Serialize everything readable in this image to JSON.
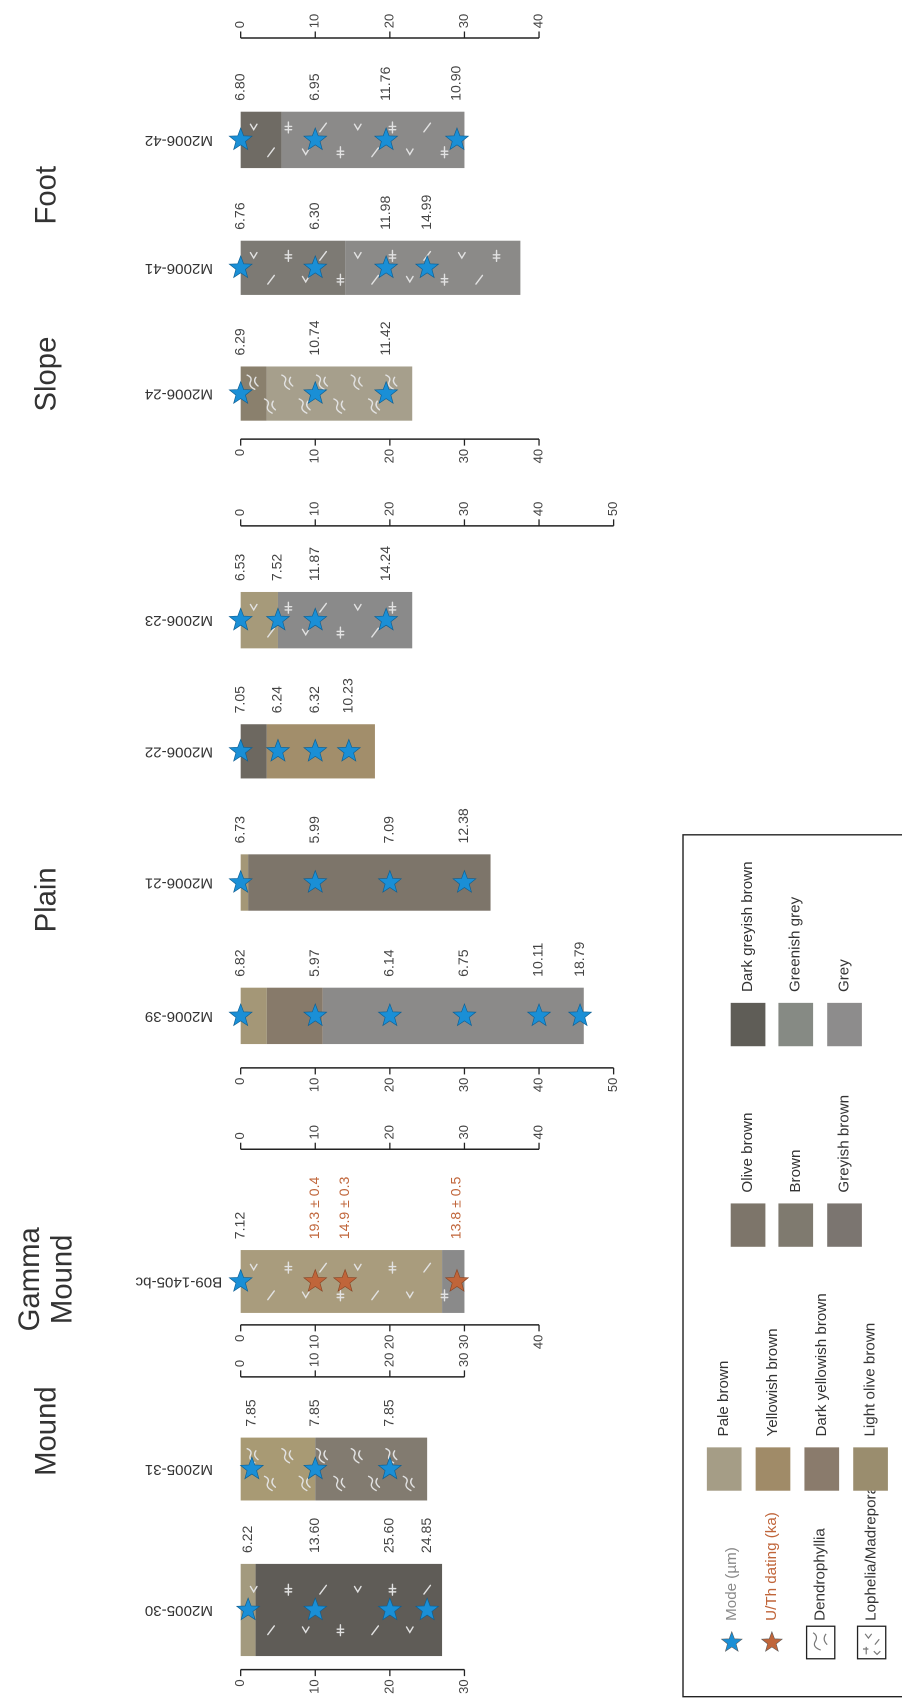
{
  "groups": [
    {
      "title_lines": [
        "Mound"
      ],
      "cores": [
        {
          "name": "M2005-30",
          "coral": "lophelia",
          "layers": [
            {
              "to": 2,
              "color": "#a39a7e"
            },
            {
              "to": 27,
              "color": "#5f5c57"
            }
          ],
          "modes": {
            "depths": [
              1,
              10,
              20,
              25
            ],
            "values": [
              6.22,
              13.6,
              25.6,
              24.85
            ],
            "value_labels": [
              "6.22",
              "13.60",
              "25.60",
              "24.85"
            ]
          }
        },
        {
          "name": "M2005-31",
          "coral": "dendrophyllia",
          "layers": [
            {
              "to": 10,
              "color": "#a89a74"
            },
            {
              "to": 25,
              "color": "#827b70"
            }
          ],
          "modes": {
            "depths": [
              1.5,
              10,
              20
            ],
            "values": [
              7.85,
              7.85,
              7.85
            ],
            "value_labels": [
              "7.85",
              "7.85",
              "7.85"
            ]
          }
        }
      ]
    },
    {
      "title_lines": [
        "Gamma",
        "Mound"
      ],
      "cores": [
        {
          "name": "B09-1405-bc",
          "coral": "lophelia",
          "layers": [
            {
              "to": 27,
              "color": "#a99c7d"
            },
            {
              "to": 30,
              "color": "#8a8a8a"
            }
          ],
          "modes": {
            "depths": [
              0
            ],
            "values": [
              7.12
            ],
            "value_labels": [
              "7.12"
            ]
          },
          "dating": {
            "depths": [
              10,
              14,
              29
            ],
            "values": [
              19.3,
              14.9,
              13.8
            ],
            "errors": [
              0.4,
              0.3,
              0.5
            ],
            "value_labels": [
              "19.3 ± 0.4",
              "14.9 ± 0.3",
              "13.8 ± 0.5"
            ]
          }
        }
      ]
    },
    {
      "title_lines": [
        "Plain"
      ],
      "cores": [
        {
          "name": "M2006-39",
          "coral": null,
          "layers": [
            {
              "to": 3.5,
              "color": "#a49777"
            },
            {
              "to": 11,
              "color": "#877a6a"
            },
            {
              "to": 46,
              "color": "#8b8a89"
            }
          ],
          "modes": {
            "depths": [
              0,
              10,
              20,
              30,
              40,
              45.5
            ],
            "values": [
              6.82,
              5.97,
              6.14,
              6.75,
              10.11,
              18.79
            ],
            "value_labels": [
              "6.82",
              "5.97",
              "6.14",
              "6.75",
              "10.11",
              "18.79"
            ]
          }
        },
        {
          "name": "M2006-21",
          "coral": null,
          "layers": [
            {
              "to": 1,
              "color": "#a49777"
            },
            {
              "to": 33.5,
              "color": "#7d756a"
            }
          ],
          "modes": {
            "depths": [
              0,
              10,
              20,
              30
            ],
            "values": [
              6.73,
              5.99,
              7.09,
              12.38
            ],
            "value_labels": [
              "6.73",
              "5.99",
              "7.09",
              "12.38"
            ]
          }
        },
        {
          "name": "M2006-22",
          "coral": null,
          "layers": [
            {
              "to": 3.5,
              "color": "#6d6860"
            },
            {
              "to": 18,
              "color": "#a28e6b"
            }
          ],
          "modes": {
            "depths": [
              0,
              5,
              10,
              14.5
            ],
            "values": [
              7.05,
              6.24,
              6.32,
              10.23
            ],
            "value_labels": [
              "7.05",
              "6.24",
              "6.32",
              "10.23"
            ]
          }
        },
        {
          "name": "M2006-23",
          "coral": "lophelia",
          "layers": [
            {
              "to": 5,
              "color": "#a69a7a"
            },
            {
              "to": 23,
              "color": "#8a8a8a"
            }
          ],
          "modes": {
            "depths": [
              0,
              5,
              10,
              19.5
            ],
            "values": [
              6.53,
              7.52,
              11.87,
              14.24
            ],
            "value_labels": [
              "6.53",
              "7.52",
              "11.87",
              "14.24"
            ]
          }
        }
      ]
    },
    {
      "title_lines": [
        "Slope"
      ],
      "cores": [
        {
          "name": "M2006-24",
          "coral": "dendrophyllia",
          "layers": [
            {
              "to": 3.5,
              "color": "#8a806d"
            },
            {
              "to": 23,
              "color": "#a69f8c"
            }
          ],
          "modes": {
            "depths": [
              0,
              10,
              19.5
            ],
            "values": [
              6.29,
              10.74,
              11.42
            ],
            "value_labels": [
              "6.29",
              "10.74",
              "11.42"
            ]
          }
        }
      ]
    },
    {
      "title_lines": [
        "Foot"
      ],
      "cores": [
        {
          "name": "M2006-41",
          "coral": "lophelia",
          "layers": [
            {
              "to": 14,
              "color": "#7d7a74"
            },
            {
              "to": 37.5,
              "color": "#8b8a88"
            }
          ],
          "modes": {
            "depths": [
              0,
              10,
              19.5,
              25
            ],
            "values": [
              6.76,
              6.3,
              11.98,
              14.99
            ],
            "value_labels": [
              "6.76",
              "6.30",
              "11.98",
              "14.99"
            ]
          }
        },
        {
          "name": "M2006-42",
          "coral": "lophelia",
          "layers": [
            {
              "to": 5.5,
              "color": "#6f6b64"
            },
            {
              "to": 30,
              "color": "#8b8a89"
            }
          ],
          "modes": {
            "depths": [
              0,
              10,
              19.5,
              29
            ],
            "values": [
              6.8,
              6.95,
              11.76,
              10.9
            ],
            "value_labels": [
              "6.80",
              "6.95",
              "11.76",
              "10.90"
            ]
          }
        }
      ]
    }
  ],
  "axes": [
    {
      "xlim": [
        0,
        30
      ],
      "xticks": [
        0,
        10,
        20,
        30
      ]
    },
    {
      "xlim": [
        0,
        30
      ],
      "xticks": [
        0,
        10,
        20,
        30
      ]
    },
    {
      "xlim": [
        0,
        40
      ],
      "xticks": [
        0,
        10,
        20,
        30,
        40
      ]
    },
    {
      "xlim": [
        0,
        40
      ],
      "xticks": [
        0,
        10,
        20,
        30,
        40
      ]
    },
    {
      "xlim": [
        0,
        50
      ],
      "xticks": [
        0,
        10,
        20,
        30,
        40,
        50
      ]
    },
    {
      "xlim": [
        0,
        50
      ],
      "xticks": [
        0,
        10,
        20,
        30,
        40,
        50
      ]
    },
    {
      "xlim": [
        0,
        40
      ],
      "xticks": [
        0,
        10,
        20,
        30,
        40
      ]
    },
    {
      "xlim": [
        0,
        40
      ],
      "xticks": [
        0,
        10,
        20,
        30,
        40
      ]
    }
  ],
  "legend": {
    "symbols": [
      {
        "label": "Mode (µm)",
        "shape": "star",
        "color": "#1a8fd6",
        "text_color": "#888888"
      },
      {
        "label": "U/Th dating (ka)",
        "shape": "star",
        "color": "#c0653a",
        "text_color": "#c0653a"
      },
      {
        "label": "Dendrophyllia",
        "shape": "dendrophyllia"
      },
      {
        "label": "Lophelia/Madrepora",
        "shape": "lophelia"
      }
    ],
    "swatch_groups": [
      [
        {
          "label": "Pale brown",
          "color": "#a59d86"
        },
        {
          "label": "Yellowish brown",
          "color": "#a08b68"
        },
        {
          "label": "Dark yellowish brown",
          "color": "#8a7b6c"
        },
        {
          "label": "Light olive brown",
          "color": "#9a8d6e"
        }
      ],
      [
        {
          "label": "Olive brown",
          "color": "#7d756a"
        },
        {
          "label": "Brown",
          "color": "#7f7a6f"
        },
        {
          "label": "Greyish brown",
          "color": "#7b7570"
        }
      ],
      [
        {
          "label": "Dark greyish brown",
          "color": "#5f5d57"
        },
        {
          "label": "Greenish grey",
          "color": "#868a84"
        },
        {
          "label": "Grey",
          "color": "#8d8c8c"
        }
      ]
    ]
  }
}
